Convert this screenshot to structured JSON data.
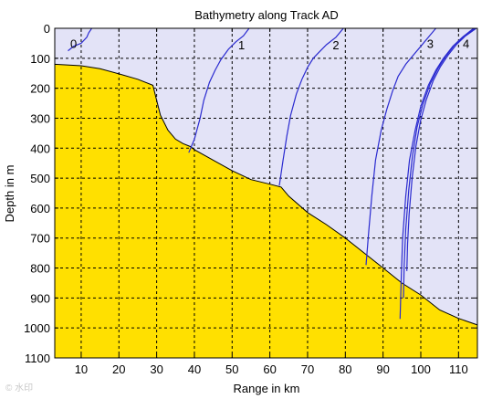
{
  "chart_data": {
    "type": "line",
    "title": "Bathymetry along Track AD",
    "xlabel": "Range in km",
    "ylabel": "Depth in m",
    "xlim": [
      3,
      115
    ],
    "ylim": [
      0,
      1100
    ],
    "y_inverted": true,
    "xticks": [
      10,
      20,
      30,
      40,
      50,
      60,
      70,
      80,
      90,
      100,
      110
    ],
    "yticks": [
      0,
      100,
      200,
      300,
      400,
      500,
      600,
      700,
      800,
      900,
      1000,
      1100
    ],
    "grid": true,
    "colors": {
      "water": "#e3e3f7",
      "seabed": "#ffe000",
      "profile": "#2a2ad0",
      "grid": "#000000"
    },
    "seabed": {
      "x": [
        3,
        10,
        15,
        20,
        25,
        29,
        30,
        31,
        33,
        35,
        37,
        39,
        40,
        45,
        50,
        55,
        60,
        63,
        65,
        70,
        75,
        80,
        85,
        90,
        95,
        100,
        105,
        110,
        115
      ],
      "y": [
        120,
        125,
        135,
        152,
        170,
        190,
        240,
        290,
        340,
        370,
        385,
        395,
        405,
        440,
        475,
        505,
        520,
        530,
        560,
        615,
        655,
        700,
        750,
        800,
        850,
        890,
        940,
        968,
        990
      ]
    },
    "series": [
      {
        "name": "0",
        "x": [
          6.5,
          8,
          10,
          11.5,
          12,
          12.8
        ],
        "y": [
          75,
          60,
          50,
          30,
          15,
          0
        ]
      },
      {
        "name": "1",
        "x": [
          38.5,
          40,
          41.5,
          42.5,
          44,
          45.5,
          47,
          49,
          51,
          53,
          54.5
        ],
        "y": [
          415,
          370,
          300,
          240,
          180,
          140,
          105,
          70,
          45,
          25,
          0
        ]
      },
      {
        "name": "2",
        "x": [
          62.5,
          63.5,
          64.5,
          65.5,
          67,
          68.5,
          70,
          71.5,
          73,
          75,
          77.5,
          79.5
        ],
        "y": [
          525,
          440,
          360,
          290,
          220,
          170,
          130,
          100,
          80,
          55,
          30,
          0
        ]
      },
      {
        "name": "3",
        "x": [
          85.5,
          86.2,
          87,
          88,
          89.5,
          91,
          92.5,
          94,
          96,
          98,
          100,
          102,
          104
        ],
        "y": [
          790,
          680,
          560,
          440,
          340,
          270,
          210,
          160,
          120,
          90,
          60,
          30,
          0
        ]
      },
      {
        "name": "4",
        "x": [
          94.5,
          94.8,
          95.2,
          96,
          97,
          98.5,
          100,
          102,
          104,
          106,
          108.5,
          111,
          114
        ],
        "y": [
          970,
          840,
          700,
          560,
          440,
          340,
          260,
          190,
          140,
          100,
          60,
          30,
          0
        ]
      },
      {
        "name": "",
        "x": [
          95.4,
          95.6,
          96,
          96.8,
          97.8,
          99,
          100.5,
          102.5,
          104.5,
          106.5,
          108.8,
          111.3,
          114.3
        ],
        "y": [
          900,
          790,
          670,
          540,
          425,
          330,
          255,
          185,
          135,
          95,
          58,
          28,
          0
        ]
      },
      {
        "name": "",
        "x": [
          96.3,
          96.5,
          96.9,
          97.7,
          98.7,
          99.9,
          101.4,
          103.3,
          105.2,
          107.2,
          109.4,
          111.8,
          114.7
        ],
        "y": [
          810,
          720,
          620,
          500,
          395,
          310,
          240,
          175,
          128,
          90,
          55,
          26,
          0
        ]
      }
    ],
    "series_label_positions": [
      {
        "name": "0",
        "x": 8,
        "y": 65
      },
      {
        "name": "1",
        "x": 52.5,
        "y": 70
      },
      {
        "name": "2",
        "x": 77.5,
        "y": 70
      },
      {
        "name": "3",
        "x": 102.5,
        "y": 65
      },
      {
        "name": "4",
        "x": 112,
        "y": 65
      }
    ]
  }
}
